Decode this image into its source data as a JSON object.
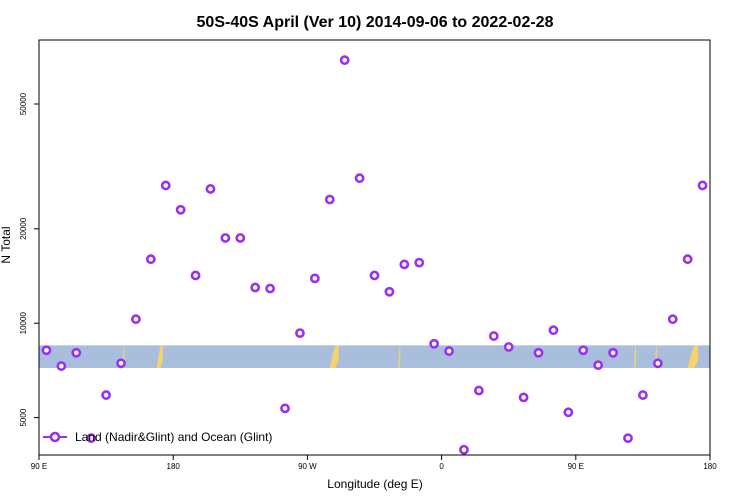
{
  "chart_data": {
    "type": "scatter",
    "title": "50S-40S April (Ver 10)   2014-09-06 to 2022-02-28",
    "xlabel": "Longitude (deg E)",
    "ylabel": "N Total",
    "y_scale": "log",
    "xlim": [
      90,
      540
    ],
    "ylim": [
      3800,
      80000
    ],
    "x_ticks": [
      {
        "value": 90,
        "label": "90 E"
      },
      {
        "value": 180,
        "label": "180"
      },
      {
        "value": 270,
        "label": "90 W"
      },
      {
        "value": 360,
        "label": "0"
      },
      {
        "value": 450,
        "label": "90 E"
      },
      {
        "value": 540,
        "label": "180"
      }
    ],
    "y_ticks": [
      {
        "value": 5000,
        "label": "5000"
      },
      {
        "value": 10000,
        "label": "10000"
      },
      {
        "value": 20000,
        "label": "20000"
      },
      {
        "value": 50000,
        "label": "50000"
      }
    ],
    "legend": {
      "position": "bottom-left",
      "entry": "Land (Nadir&Glint) and Ocean (Glint)"
    },
    "colors": {
      "marker": "#9b2ff0",
      "band": "#a8bedc",
      "land": "#f5d36a"
    },
    "band": {
      "y_low": 7200,
      "y_high": 8500
    },
    "land_patches": [
      {
        "x_from": 146,
        "x_to": 146.5
      },
      {
        "x_from": 169,
        "x_to": 173
      },
      {
        "x_from": 285,
        "x_to": 291
      },
      {
        "x_from": 331,
        "x_to": 331.5
      },
      {
        "x_from": 489,
        "x_to": 489.5
      },
      {
        "x_from": 503,
        "x_to": 503.5
      },
      {
        "x_from": 525,
        "x_to": 532
      }
    ],
    "series": [
      {
        "values": [
          [
            95,
            8200
          ],
          [
            105,
            7300
          ],
          [
            115,
            8050
          ],
          [
            125,
            4300
          ],
          [
            135,
            5900
          ],
          [
            145,
            7450
          ],
          [
            155,
            10300
          ],
          [
            165,
            16000
          ],
          [
            175,
            27500
          ],
          [
            185,
            23000
          ],
          [
            195,
            14200
          ],
          [
            205,
            26800
          ],
          [
            215,
            18700
          ],
          [
            225,
            18700
          ],
          [
            235,
            13000
          ],
          [
            245,
            12900
          ],
          [
            255,
            5350
          ],
          [
            265,
            9300
          ],
          [
            275,
            13900
          ],
          [
            285,
            24800
          ],
          [
            295,
            69000
          ],
          [
            305,
            29000
          ],
          [
            315,
            14200
          ],
          [
            325,
            12600
          ],
          [
            335,
            15400
          ],
          [
            345,
            15600
          ],
          [
            355,
            8600
          ],
          [
            365,
            8150
          ],
          [
            375,
            3950
          ],
          [
            385,
            6100
          ],
          [
            395,
            9100
          ],
          [
            405,
            8400
          ],
          [
            415,
            5800
          ],
          [
            425,
            8050
          ],
          [
            435,
            9500
          ],
          [
            445,
            5200
          ],
          [
            455,
            8200
          ],
          [
            465,
            7350
          ],
          [
            475,
            8050
          ],
          [
            485,
            4300
          ],
          [
            495,
            5900
          ],
          [
            505,
            7450
          ],
          [
            515,
            10300
          ],
          [
            525,
            16000
          ],
          [
            535,
            27500
          ]
        ]
      }
    ]
  }
}
